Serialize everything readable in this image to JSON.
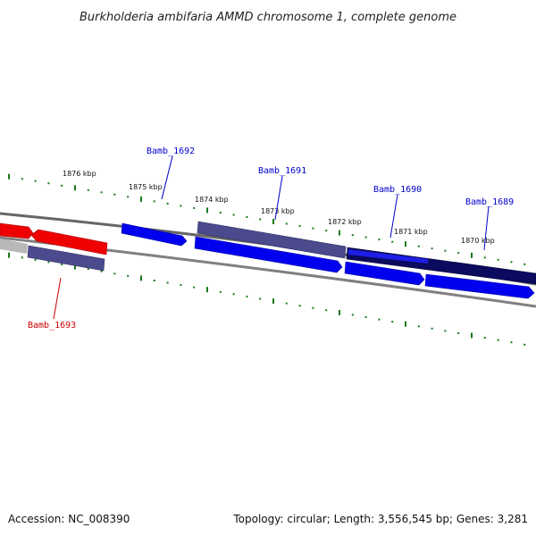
{
  "title": "Burkholderia ambifaria AMMD chromosome 1, complete genome",
  "footer": {
    "accession": "Accession: NC_008390",
    "summary": "Topology: circular; Length: 3,556,545 bp; Genes: 3,281"
  },
  "tick_labels": [
    "1876 kbp",
    "1875 kbp",
    "1874 kbp",
    "1873 kbp",
    "1872 kbp",
    "1871 kbp",
    "1870 kbp"
  ],
  "genes": [
    {
      "label": "Bamb_1692",
      "color": "#0000cc"
    },
    {
      "label": "Bamb_1691",
      "color": "#0000cc"
    },
    {
      "label": "Bamb_1690",
      "color": "#0000cc"
    },
    {
      "label": "Bamb_1689",
      "color": "#0000cc"
    },
    {
      "label": "Bamb_1693",
      "color": "#cc0000"
    }
  ],
  "colors": {
    "forward_strand": "#0000ee",
    "reverse_strand": "#ee0000",
    "feature_purple": "#4a4a8c",
    "feature_navy": "#0a0a5e",
    "tick_green": "#1a7a1a",
    "backbone_gray": "#808080"
  }
}
